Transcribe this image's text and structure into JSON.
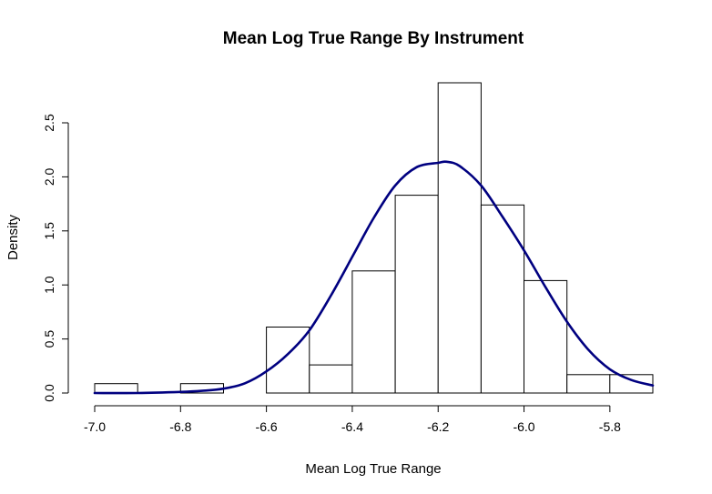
{
  "chart_data": {
    "type": "bar",
    "title": "Mean Log True Range By Instrument",
    "xlabel": "Mean Log True Range",
    "ylabel": "Density",
    "xlim": [
      -7.0,
      -5.7
    ],
    "ylim": [
      0,
      2.5
    ],
    "x_ticks": [
      "-7.0",
      "-6.8",
      "-6.6",
      "-6.4",
      "-6.2",
      "-6.0",
      "-5.8"
    ],
    "y_ticks": [
      "0.0",
      "0.5",
      "1.0",
      "1.5",
      "2.0",
      "2.5"
    ],
    "bins": [
      {
        "left": -7.0,
        "right": -6.9,
        "density": 0.087
      },
      {
        "left": -6.9,
        "right": -6.8,
        "density": 0.0
      },
      {
        "left": -6.8,
        "right": -6.7,
        "density": 0.087
      },
      {
        "left": -6.7,
        "right": -6.6,
        "density": 0.0
      },
      {
        "left": -6.6,
        "right": -6.5,
        "density": 0.61
      },
      {
        "left": -6.5,
        "right": -6.4,
        "density": 0.26
      },
      {
        "left": -6.4,
        "right": -6.3,
        "density": 1.13
      },
      {
        "left": -6.3,
        "right": -6.2,
        "density": 1.83
      },
      {
        "left": -6.2,
        "right": -6.1,
        "density": 2.87
      },
      {
        "left": -6.1,
        "right": -6.0,
        "density": 1.74
      },
      {
        "left": -6.0,
        "right": -5.9,
        "density": 1.04
      },
      {
        "left": -5.9,
        "right": -5.8,
        "density": 0.17
      },
      {
        "left": -5.8,
        "right": -5.7,
        "density": 0.17
      }
    ],
    "density_curve": {
      "color": "#000080",
      "x": [
        -7.0,
        -6.9,
        -6.8,
        -6.75,
        -6.7,
        -6.65,
        -6.6,
        -6.55,
        -6.5,
        -6.45,
        -6.4,
        -6.35,
        -6.3,
        -6.25,
        -6.2,
        -6.18,
        -6.15,
        -6.1,
        -6.05,
        -6.0,
        -5.95,
        -5.9,
        -5.85,
        -5.8,
        -5.75,
        -5.7
      ],
      "y": [
        0.0,
        0.0,
        0.01,
        0.02,
        0.04,
        0.09,
        0.2,
        0.36,
        0.58,
        0.9,
        1.26,
        1.62,
        1.92,
        2.09,
        2.13,
        2.14,
        2.1,
        1.92,
        1.63,
        1.32,
        0.98,
        0.66,
        0.4,
        0.22,
        0.12,
        0.07
      ]
    }
  }
}
